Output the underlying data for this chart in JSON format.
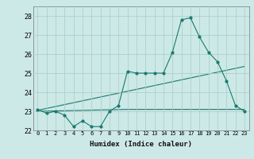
{
  "xlabel": "Humidex (Indice chaleur)",
  "x": [
    0,
    1,
    2,
    3,
    4,
    5,
    6,
    7,
    8,
    9,
    10,
    11,
    12,
    13,
    14,
    15,
    16,
    17,
    18,
    19,
    20,
    21,
    22,
    23
  ],
  "y_main": [
    23.1,
    22.9,
    23.0,
    22.8,
    22.2,
    22.5,
    22.2,
    22.2,
    23.0,
    23.3,
    25.1,
    25.0,
    25.0,
    25.0,
    25.0,
    26.1,
    27.8,
    27.9,
    26.9,
    26.1,
    25.6,
    24.6,
    23.3,
    23.0
  ],
  "y_reg1": [
    23.05,
    23.15,
    23.25,
    23.35,
    23.45,
    23.55,
    23.65,
    23.75,
    23.85,
    23.95,
    24.05,
    24.15,
    24.25,
    24.35,
    24.45,
    24.55,
    24.65,
    24.75,
    24.85,
    24.95,
    25.05,
    25.15,
    25.25,
    25.35
  ],
  "y_reg2": [
    23.0,
    23.01,
    23.02,
    23.03,
    23.04,
    23.05,
    23.06,
    23.07,
    23.08,
    23.09,
    23.1,
    23.1,
    23.1,
    23.1,
    23.1,
    23.1,
    23.1,
    23.1,
    23.1,
    23.1,
    23.1,
    23.1,
    23.1,
    23.1
  ],
  "line_color": "#1a7a6e",
  "bg_color": "#cce9e7",
  "grid_color": "#aecfcd",
  "ylim": [
    22.0,
    28.5
  ],
  "xlim": [
    -0.5,
    23.5
  ],
  "yticks": [
    22,
    23,
    24,
    25,
    26,
    27,
    28
  ]
}
